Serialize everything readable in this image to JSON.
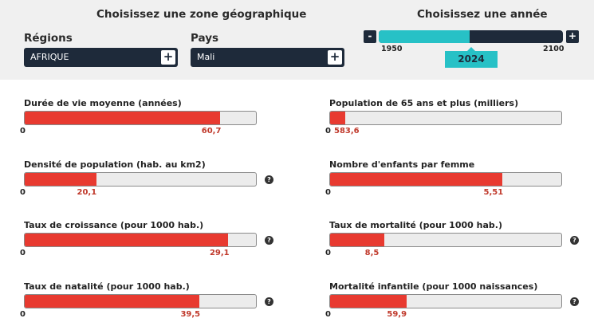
{
  "header": {
    "zone_title": "Choisissez une zone géographique",
    "year_title": "Choisissez une année"
  },
  "regions": {
    "label": "Régions",
    "value": "AFRIQUE",
    "plus": "+"
  },
  "pays": {
    "label": "Pays",
    "value": "Mali",
    "plus": "+"
  },
  "year_slider": {
    "minus": "-",
    "plus": "+",
    "min_label": "1950",
    "max_label": "2100",
    "min": 1950,
    "max": 2100,
    "value_label": "2024",
    "value": 2024
  },
  "metrics": [
    {
      "title": "Durée de vie moyenne (années)",
      "zero": "0",
      "value_label": "60,7",
      "fill_fraction": 0.845,
      "has_help": false
    },
    {
      "title": "Population de 65 ans et plus (milliers)",
      "zero": "0",
      "value_label": "583,6",
      "fill_fraction": 0.065,
      "has_help": false
    },
    {
      "title": "Densité de population (hab. au km2)",
      "zero": "0",
      "value_label": "20,1",
      "fill_fraction": 0.31,
      "has_help": true,
      "help": "?"
    },
    {
      "title": "Nombre d'enfants par femme",
      "zero": "0",
      "value_label": "5,51",
      "fill_fraction": 0.745,
      "has_help": false
    },
    {
      "title": "Taux de croissance (pour 1000 hab.)",
      "zero": "0",
      "value_label": "29,1",
      "fill_fraction": 0.88,
      "has_help": true,
      "help": "?"
    },
    {
      "title": "Taux de mortalité (pour 1000 hab.)",
      "zero": "0",
      "value_label": "8,5",
      "fill_fraction": 0.235,
      "has_help": true,
      "help": "?"
    },
    {
      "title": "Taux de natalité (pour 1000 hab.)",
      "zero": "0",
      "value_label": "39,5",
      "fill_fraction": 0.755,
      "has_help": true,
      "help": "?"
    },
    {
      "title": "Mortalité infantile (pour 1000 naissances)",
      "zero": "0",
      "value_label": "59,9",
      "fill_fraction": 0.33,
      "has_help": true,
      "help": "?"
    }
  ],
  "colors": {
    "dark_navy": "#1e2a3a",
    "teal": "#27c1c6",
    "bar_red": "#e83a30",
    "value_red": "#c0392b"
  }
}
